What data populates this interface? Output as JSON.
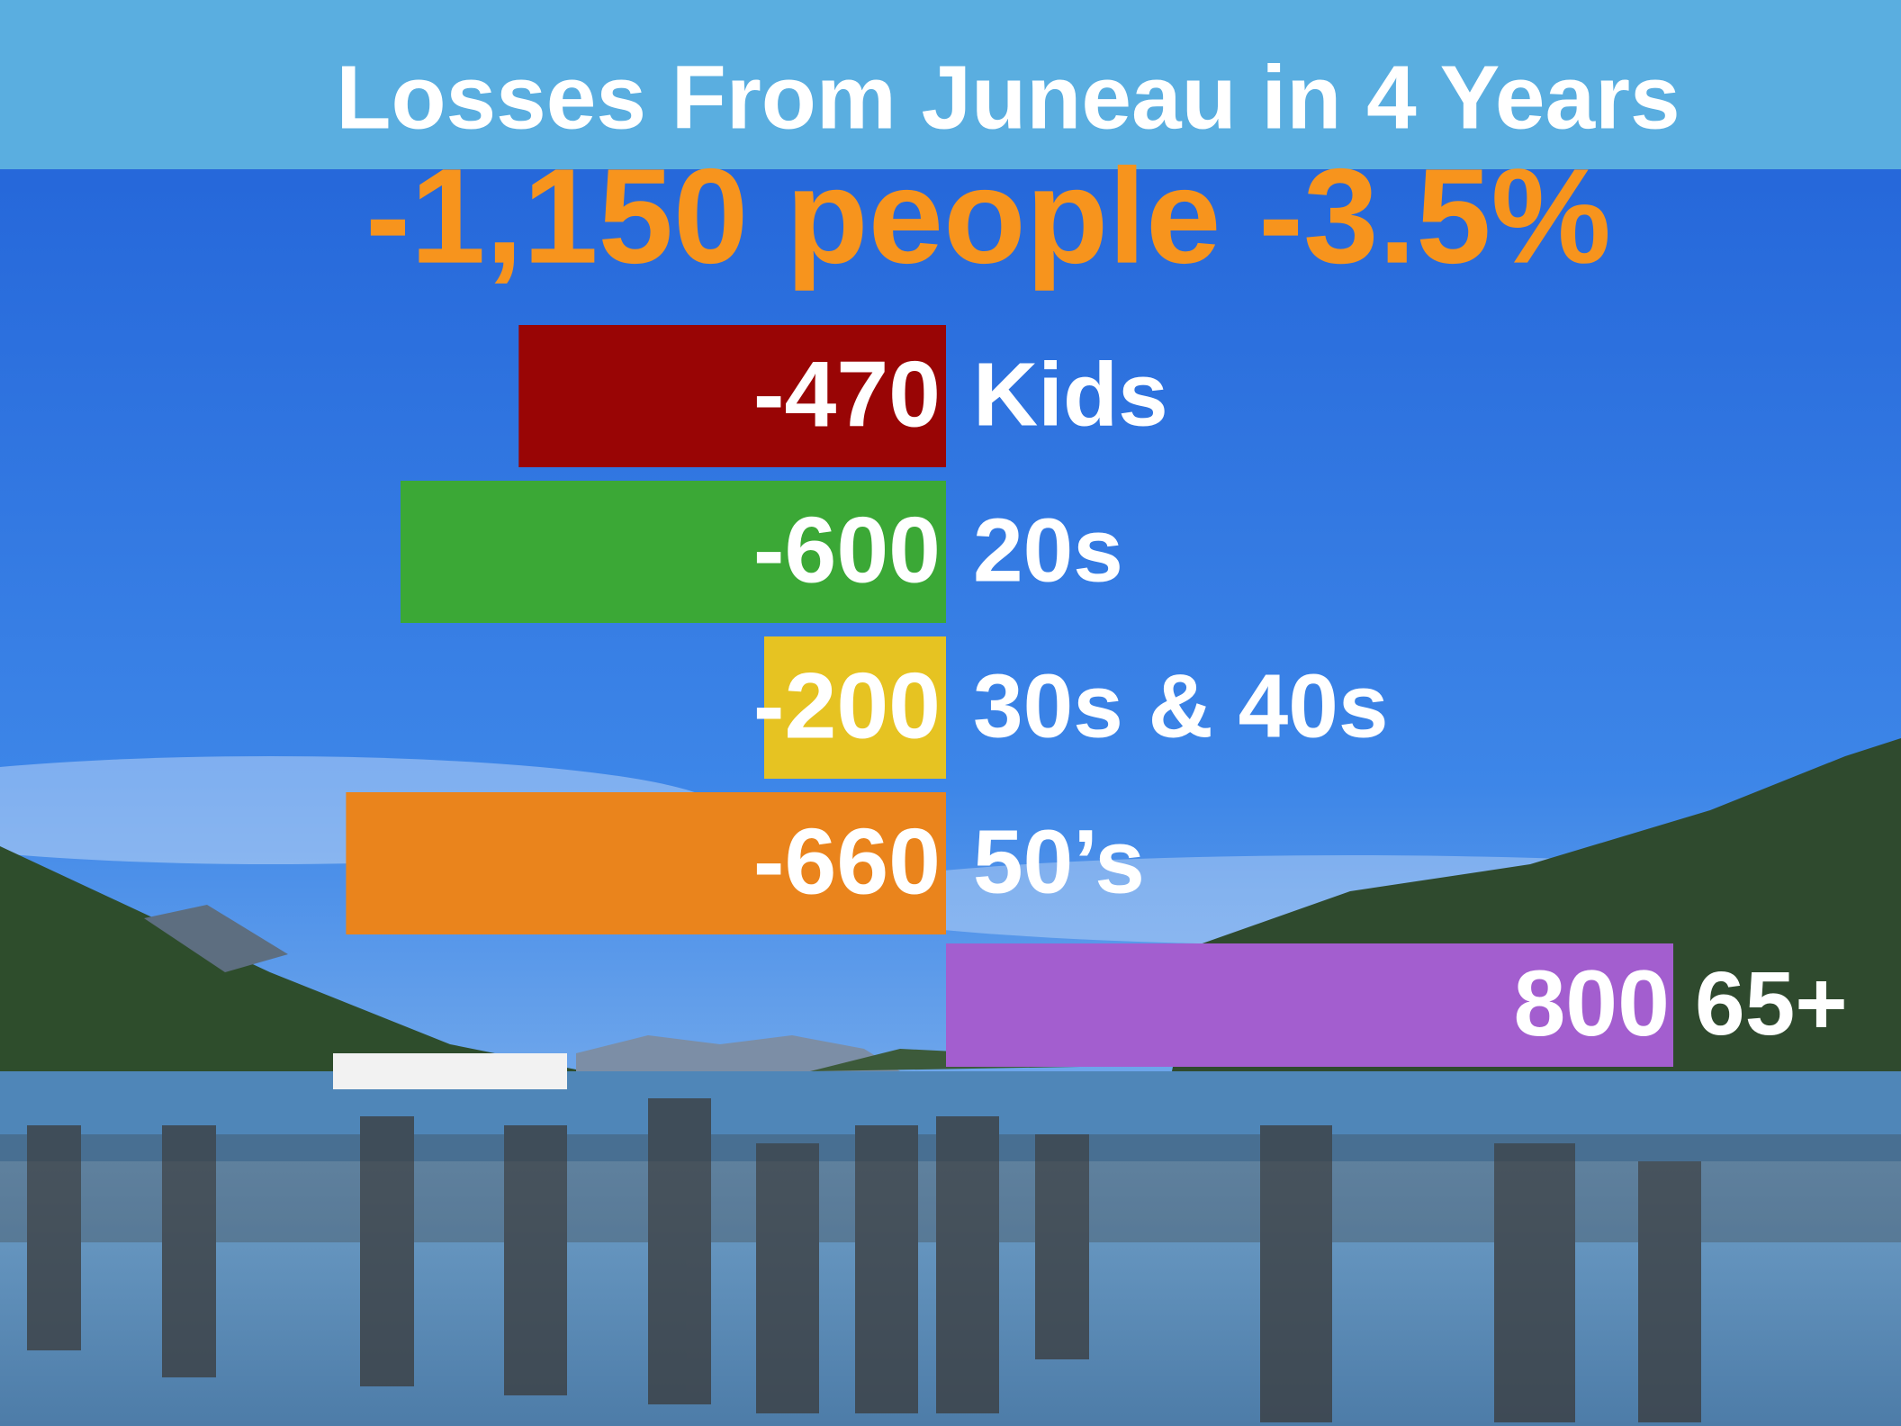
{
  "chart_data": {
    "type": "bar",
    "orientation": "horizontal",
    "title": "Losses From Juneau in 4 Years",
    "subtitle": "-1,150 people -3.5%",
    "categories": [
      "Kids",
      "20s",
      "30s & 40s",
      "50’s",
      "65+"
    ],
    "values": [
      -470,
      -600,
      -200,
      -660,
      800
    ],
    "colors": [
      "#990505",
      "#3ba836",
      "#e6c322",
      "#ea841c",
      "#a35ecf"
    ]
  }
}
